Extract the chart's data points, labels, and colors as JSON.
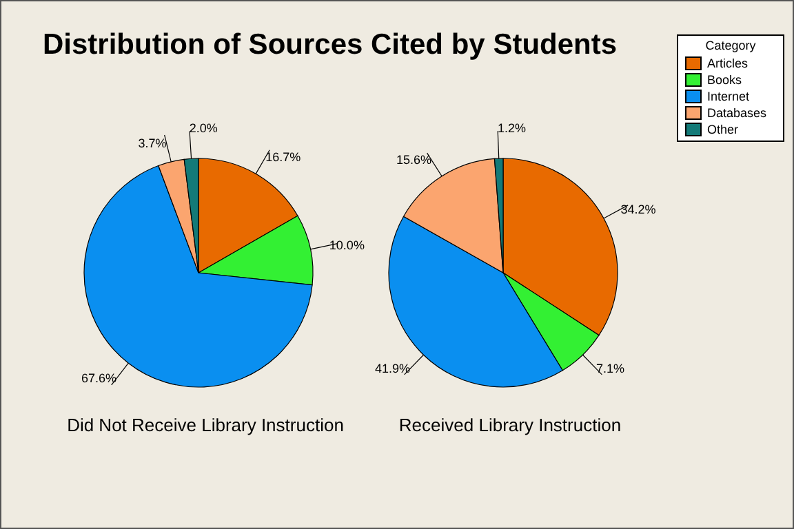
{
  "chart_data": [
    {
      "type": "pie",
      "title": "Distribution of Sources Cited by Students",
      "xlabel": "Did Not Receive Library Instruction",
      "categories": [
        null,
        null,
        null,
        null,
        null
      ],
      "values": [
        16.7,
        10.0,
        67.6,
        3.7,
        2.0
      ],
      "value_labels": [
        "16.7%",
        "10.0%",
        "67.6%",
        "3.7%",
        "2.0%"
      ],
      "colors": [
        "#e86a00",
        "#33f033",
        "#0a8ff0",
        "#fba56f",
        "#137a78"
      ]
    },
    {
      "type": "pie",
      "xlabel": "Received Library Instruction",
      "categories": [
        "Articles",
        "Books",
        "Internet",
        "Databases",
        "Other"
      ],
      "values": [
        34.2,
        7.1,
        41.9,
        15.6,
        1.2
      ],
      "value_labels": [
        "34.2%",
        "7.1%",
        "41.9%",
        "15.6%",
        "1.2%"
      ],
      "colors": [
        "#e86a00",
        "#33f033",
        "#0a8ff0",
        "#fba56f",
        "#137a78"
      ],
      "legend": "top right",
      "legend_title": "Category"
    }
  ]
}
